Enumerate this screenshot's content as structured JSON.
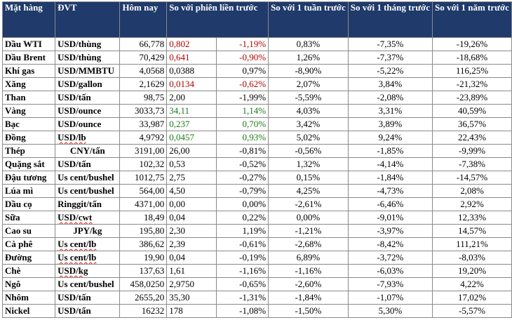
{
  "headers": {
    "commodity": "Mặt hàng",
    "unit": "ĐVT",
    "today": "Hôm nay",
    "vs_prev_session": "So với phiên liền trước",
    "vs_1_week": "So với 1 tuần trước",
    "vs_1_month": "So với 1 tháng trước",
    "vs_1_year": "So với 1 năm trước"
  },
  "colors": {
    "header_bg": "#1f3a6b",
    "up": "#1a7a1a",
    "down": "#b00000"
  },
  "rows": [
    {
      "name": "Dầu WTI",
      "unit": "USD/thùng",
      "today": "66,778",
      "chg": "0,802",
      "chg_pct": "-1,19%",
      "w1": "0,83%",
      "m1": "-7,35%",
      "y1": "-19,26%",
      "color": "down"
    },
    {
      "name": "Dầu Brent",
      "unit": "USD/thùng",
      "today": "70,429",
      "chg": "0,641",
      "chg_pct": "-0,90%",
      "w1": "1,26%",
      "m1": "-7,37%",
      "y1": "-18,68%",
      "color": "down"
    },
    {
      "name": "Khí gas",
      "unit": "USD/MMBTU",
      "today": "4,0568",
      "chg": "0,0388",
      "chg_pct": "0,97%",
      "w1": "-8,90%",
      "m1": "-5,22%",
      "y1": "116,25%",
      "color": "neutral"
    },
    {
      "name": "Xăng",
      "unit": "USD/gallon",
      "today": "2,1629",
      "chg": "0,0134",
      "chg_pct": "-0,62%",
      "w1": "2,07%",
      "m1": "3,84%",
      "y1": "-21,32%",
      "color": "down"
    },
    {
      "name": "Than",
      "unit": "USD/tấn",
      "today": "98,75",
      "chg": "2,00",
      "chg_pct": "-1,99%",
      "w1": "-5,59%",
      "m1": "-2,08%",
      "y1": "-23,89%",
      "color": "neutral"
    },
    {
      "name": "Vàng",
      "unit": "USD/ounce",
      "today": "3033,73",
      "chg": "34,11",
      "chg_pct": "1,14%",
      "w1": "4,03%",
      "m1": "3,31%",
      "y1": "40,59%",
      "color": "up"
    },
    {
      "name": "Bạc",
      "unit": "USD/ounce",
      "today": "33,987",
      "chg": "0,237",
      "chg_pct": "0,70%",
      "w1": "3,42%",
      "m1": "3,89%",
      "y1": "36,57%",
      "color": "up"
    },
    {
      "name": "Đồng",
      "unit": "USD/lb",
      "today": "4,9792",
      "chg": "0,0457",
      "chg_pct": "0,93%",
      "w1": "5,02%",
      "m1": "9,24%",
      "y1": "22,43%",
      "color": "up",
      "unit_squiggle": true
    },
    {
      "name": "Thép",
      "unit": "CNY/tấn",
      "today": "3191,00",
      "chg": "26,00",
      "chg_pct": "-0,81%",
      "w1": "-0,56%",
      "m1": "-1,85%",
      "y1": "-9,99%",
      "color": "neutral",
      "unit_center": true
    },
    {
      "name": "Quặng sắt",
      "unit": "USD/tấn",
      "today": "102,32",
      "chg": "0,53",
      "chg_pct": "-0,52%",
      "w1": "1,32%",
      "m1": "-4,14%",
      "y1": "-7,38%",
      "color": "neutral"
    },
    {
      "name": "Đậu tương",
      "unit": "Us cent/bushel",
      "today": "1012,75",
      "chg": "2,75",
      "chg_pct": "-0,27%",
      "w1": "0,15%",
      "m1": "-1,84%",
      "y1": "-14,57%",
      "color": "neutral"
    },
    {
      "name": "Lúa mì",
      "unit": "Us cent/bushel",
      "today": "564,00",
      "chg": "4,50",
      "chg_pct": "-0,79%",
      "w1": "4,25%",
      "m1": "-4,73%",
      "y1": "2,08%",
      "color": "neutral"
    },
    {
      "name": "Dầu cọ",
      "unit": "Ringgit/tấn",
      "today": "4371,00",
      "chg": "0,00",
      "chg_pct": "0,00%",
      "w1": "-2,61%",
      "m1": "-6,46%",
      "y1": "2,92%",
      "color": "neutral"
    },
    {
      "name": "Sữa",
      "unit": "USD/cwt",
      "today": "18,49",
      "chg": "0,04",
      "chg_pct": "0,22%",
      "w1": "0,00%",
      "m1": "-9,01%",
      "y1": "12,33%",
      "color": "neutral",
      "unit_squiggle": true
    },
    {
      "name": "Cao su",
      "unit": "JPY/kg",
      "today": "195,80",
      "chg": "2,30",
      "chg_pct": "1,19%",
      "w1": "-1,21%",
      "m1": "-3,97%",
      "y1": "14,57%",
      "color": "neutral",
      "unit_center": true
    },
    {
      "name": "Cà phê",
      "unit": "Us cent/lb",
      "today": "386,62",
      "chg": "2,39",
      "chg_pct": "-0,61%",
      "w1": "-2,68%",
      "m1": "-8,42%",
      "y1": "111,21%",
      "color": "neutral",
      "unit_squiggle": true
    },
    {
      "name": "Đường",
      "unit": "Us cent/lb",
      "today": "19,90",
      "chg": "0,04",
      "chg_pct": "-0,19%",
      "w1": "6,89%",
      "m1": "-3,72%",
      "y1": "-8,03%",
      "color": "neutral",
      "unit_squiggle": true
    },
    {
      "name": "Chè",
      "unit": "USD/kg",
      "today": "137,63",
      "chg": "1,61",
      "chg_pct": "-1,16%",
      "w1": "-1,16%",
      "m1": "-6,03%",
      "y1": "19,20%",
      "color": "neutral",
      "unit_squiggle": true
    },
    {
      "name": "Ngô",
      "unit": "Us cent/bushel",
      "today": "458,0250",
      "chg": "2,9750",
      "chg_pct": "-0,65%",
      "w1": "-2,60%",
      "m1": "-7,93%",
      "y1": "4,22%",
      "color": "neutral"
    },
    {
      "name": "Nhôm",
      "unit": "USD/tấn",
      "today": "2655,20",
      "chg": "35,30",
      "chg_pct": "-1,31%",
      "w1": "-1,84%",
      "m1": "-1,07%",
      "y1": "17,02%",
      "color": "neutral"
    },
    {
      "name": "Nickel",
      "unit": "USD/tấn",
      "today": "16232",
      "chg": "178",
      "chg_pct": "-1,08%",
      "w1": "-1,50%",
      "m1": "5,30%",
      "y1": "-5,57%",
      "color": "neutral"
    }
  ]
}
